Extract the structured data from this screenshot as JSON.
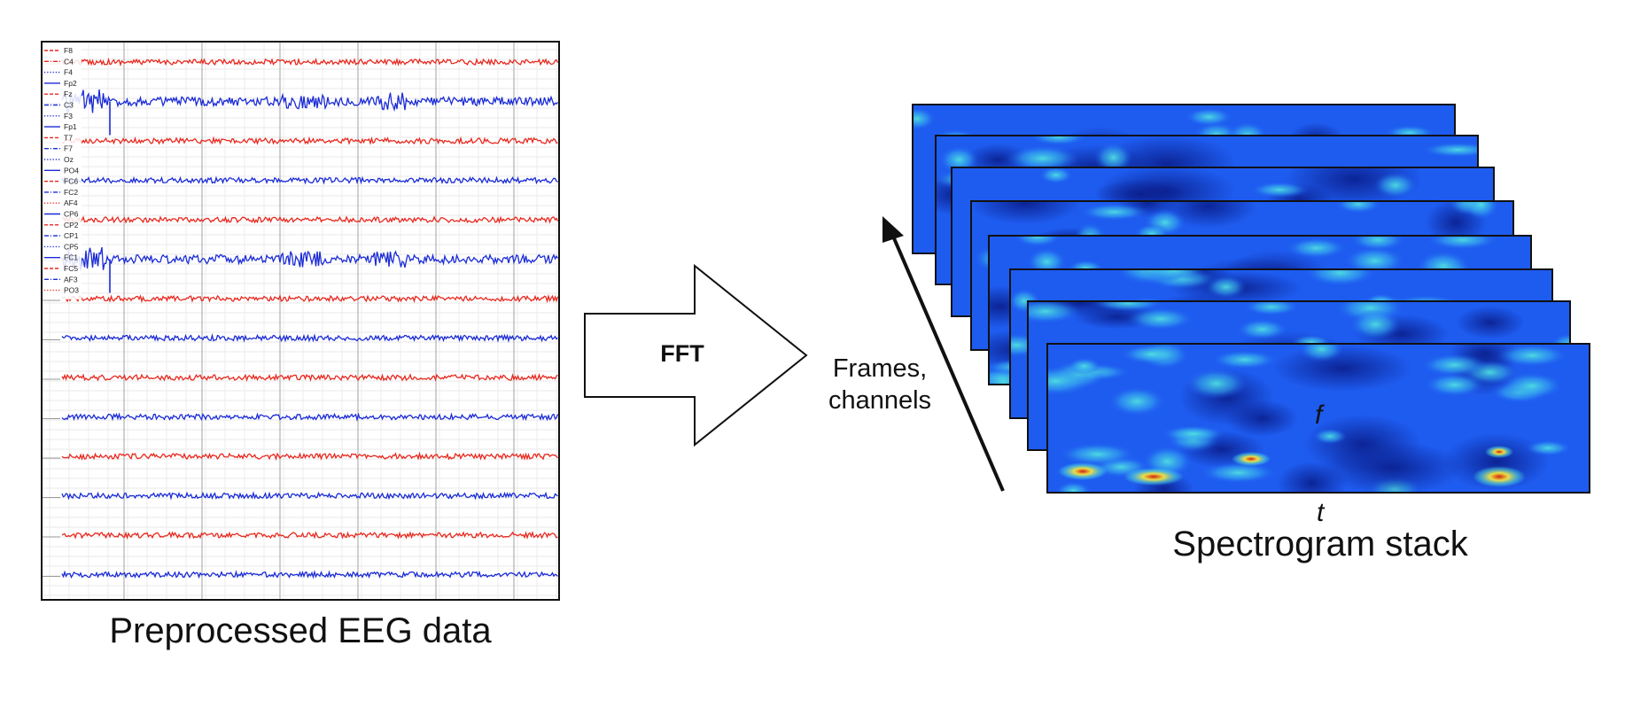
{
  "eeg": {
    "caption": "Preprocessed EEG data",
    "channels": [
      {
        "name": "F8",
        "style": "dashed",
        "color": "#e8281e"
      },
      {
        "name": "C4",
        "style": "dashdot",
        "color": "#e8281e"
      },
      {
        "name": "F4",
        "style": "dotted",
        "color": "#1a2bd6"
      },
      {
        "name": "Fp2",
        "style": "solid",
        "color": "#1a2bd6"
      },
      {
        "name": "Fz",
        "style": "dashed",
        "color": "#e8281e"
      },
      {
        "name": "C3",
        "style": "dashdot",
        "color": "#1a2bd6"
      },
      {
        "name": "F3",
        "style": "dotted",
        "color": "#1a2bd6"
      },
      {
        "name": "Fp1",
        "style": "solid",
        "color": "#1a2bd6"
      },
      {
        "name": "T7",
        "style": "dashed",
        "color": "#e8281e"
      },
      {
        "name": "F7",
        "style": "dashdot",
        "color": "#1a2bd6"
      },
      {
        "name": "Oz",
        "style": "dotted",
        "color": "#1a2bd6"
      },
      {
        "name": "PO4",
        "style": "solid",
        "color": "#1a2bd6"
      },
      {
        "name": "FC6",
        "style": "dashed",
        "color": "#e8281e"
      },
      {
        "name": "FC2",
        "style": "dashdot",
        "color": "#1a2bd6"
      },
      {
        "name": "AF4",
        "style": "dotted",
        "color": "#e8281e"
      },
      {
        "name": "CP6",
        "style": "solid",
        "color": "#1a2bd6"
      },
      {
        "name": "CP2",
        "style": "dashed",
        "color": "#e8281e"
      },
      {
        "name": "CP1",
        "style": "dashdot",
        "color": "#1a2bd6"
      },
      {
        "name": "CP5",
        "style": "dotted",
        "color": "#1a2bd6"
      },
      {
        "name": "FC1",
        "style": "solid",
        "color": "#1a2bd6"
      },
      {
        "name": "FC5",
        "style": "dashed",
        "color": "#e8281e"
      },
      {
        "name": "AF3",
        "style": "dashdot",
        "color": "#1a2bd6"
      },
      {
        "name": "PO3",
        "style": "dotted",
        "color": "#e8281e"
      }
    ],
    "traces": [
      {
        "color": "#e8281e",
        "burst": false
      },
      {
        "color": "#1a2bd6",
        "burst": true
      },
      {
        "color": "#e8281e",
        "burst": false
      },
      {
        "color": "#1a2bd6",
        "burst": false
      },
      {
        "color": "#e8281e",
        "burst": false
      },
      {
        "color": "#1a2bd6",
        "burst": true
      },
      {
        "color": "#e8281e",
        "burst": false
      },
      {
        "color": "#1a2bd6",
        "burst": false
      },
      {
        "color": "#e8281e",
        "burst": false
      },
      {
        "color": "#1a2bd6",
        "burst": false
      },
      {
        "color": "#e8281e",
        "burst": false
      },
      {
        "color": "#1a2bd6",
        "burst": false
      },
      {
        "color": "#e8281e",
        "burst": false
      },
      {
        "color": "#1a2bd6",
        "burst": false
      }
    ]
  },
  "arrow": {
    "label": "FFT"
  },
  "axis_arrow": {
    "label_line1": "Frames,",
    "label_line2": "channels"
  },
  "spectrogram": {
    "caption": "Spectrogram stack",
    "f_label": "f",
    "t_label": "t",
    "frame_count": 8,
    "colors": {
      "low": "#0a1e8c",
      "mid": "#1e5cf0",
      "high": "#4fe0e0",
      "peak": "#f5e63c",
      "hot": "#d62010"
    }
  }
}
